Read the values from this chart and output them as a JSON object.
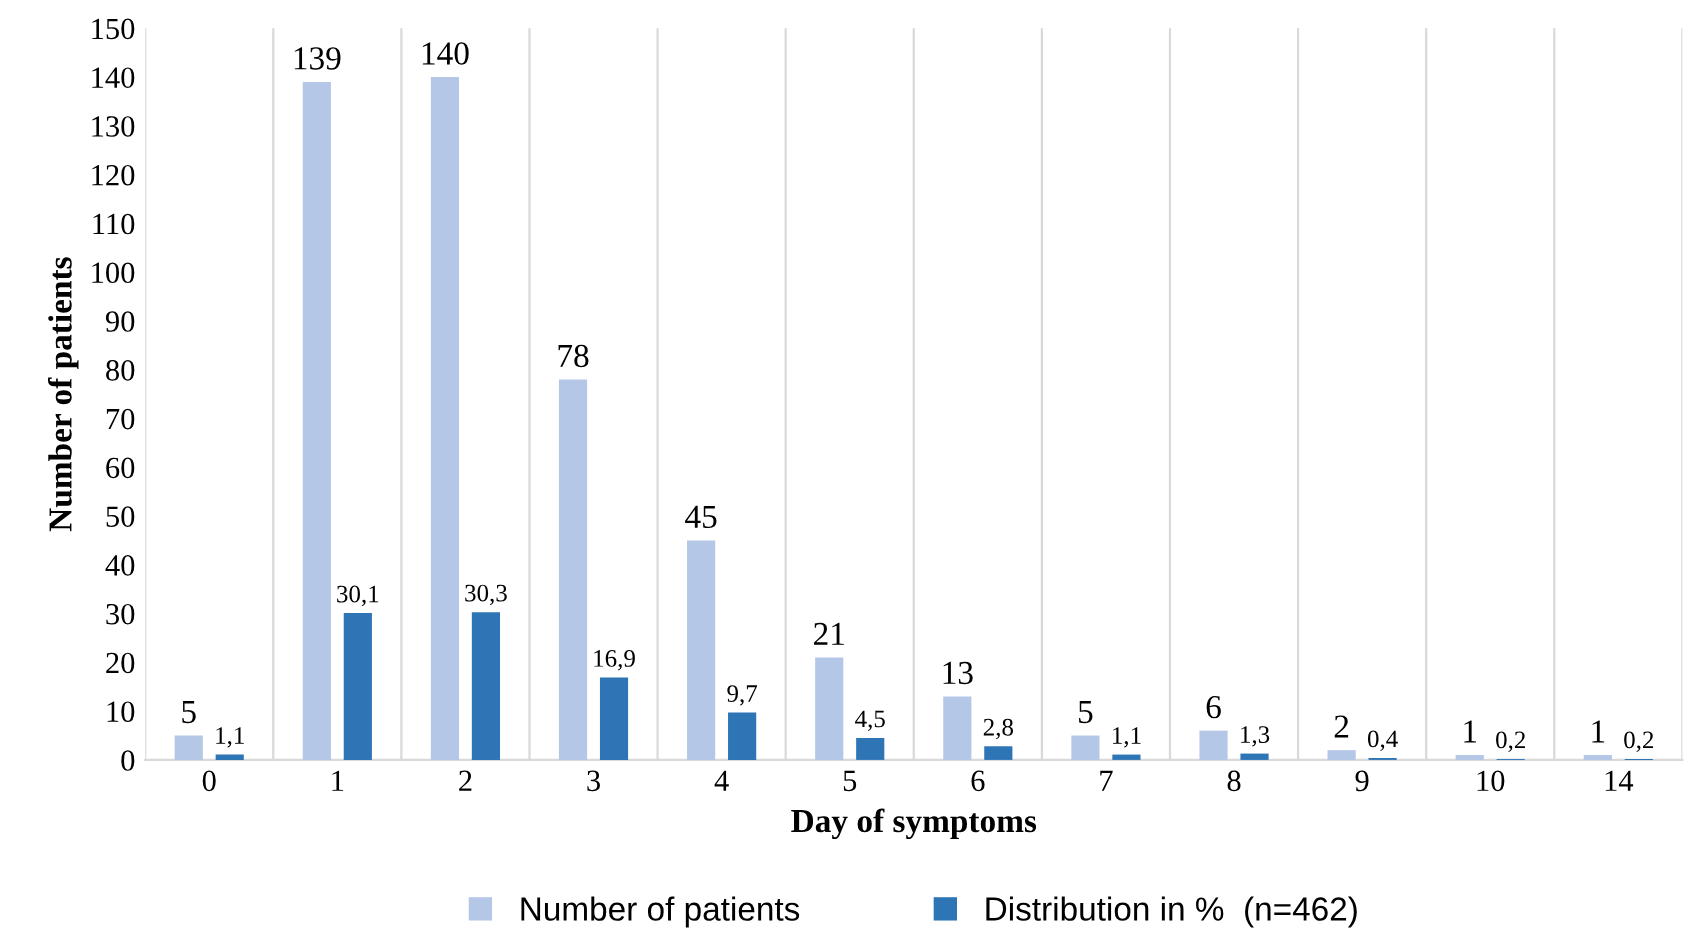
{
  "chart_data": {
    "type": "bar",
    "xlabel": "Day of symptoms",
    "ylabel": "Number of patients",
    "categories": [
      "0",
      "1",
      "2",
      "3",
      "4",
      "5",
      "6",
      "7",
      "8",
      "9",
      "10",
      "14"
    ],
    "series": [
      {
        "name": "Number of patients",
        "color": "#b4c7e7",
        "values": [
          5,
          139,
          140,
          78,
          45,
          21,
          13,
          5,
          6,
          2,
          1,
          1
        ],
        "value_labels": [
          "5",
          "139",
          "140",
          "78",
          "45",
          "21",
          "13",
          "5",
          "6",
          "2",
          "1",
          "1"
        ]
      },
      {
        "name": "Distribution in %  (n=462)",
        "color": "#2e75b6",
        "values": [
          1.1,
          30.1,
          30.3,
          16.9,
          9.7,
          4.5,
          2.8,
          1.1,
          1.3,
          0.4,
          0.2,
          0.2
        ],
        "value_labels": [
          "1,1",
          "30,1",
          "30,3",
          "16,9",
          "9,7",
          "4,5",
          "2,8",
          "1,1",
          "1,3",
          "0,4",
          "0,2",
          "0,2"
        ]
      }
    ],
    "ylim": [
      0,
      150
    ],
    "yticks": [
      0,
      10,
      20,
      30,
      40,
      50,
      60,
      70,
      80,
      90,
      100,
      110,
      120,
      130,
      140,
      150
    ],
    "grid": "x",
    "legend": "bottom"
  }
}
